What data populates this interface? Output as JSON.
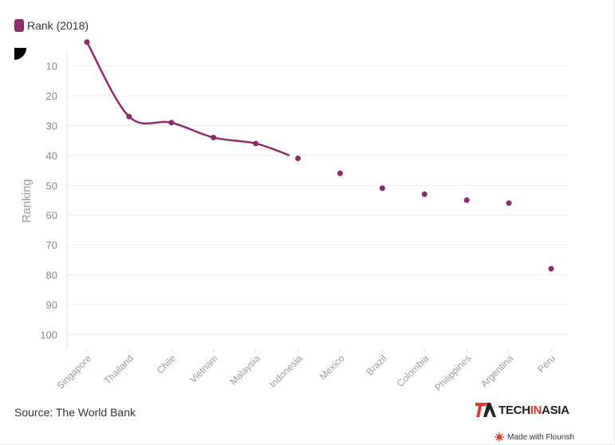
{
  "legend": {
    "label": "Rank (2018)",
    "color": "#8b2d6b"
  },
  "source": {
    "text": "Source: The World Bank"
  },
  "brand": {
    "prefix": "TECH",
    "middle": "IN",
    "suffix": "ASIA"
  },
  "flourish": {
    "label": "Made with Flourish"
  },
  "chart_data": {
    "type": "line",
    "title": "",
    "xlabel": "",
    "ylabel": "Ranking",
    "categories": [
      "Singapore",
      "Thailand",
      "Chile",
      "Vietnam",
      "Malaysia",
      "Indonesia",
      "Mexico",
      "Brazil",
      "Colombia",
      "Philippines",
      "Argentina",
      "Peru"
    ],
    "series": [
      {
        "name": "Rank (2018)",
        "values": [
          2,
          27,
          29,
          34,
          36,
          41,
          46,
          51,
          53,
          55,
          56,
          78
        ],
        "color": "#8b2d6b"
      }
    ],
    "ylim": [
      5,
      105
    ],
    "y_inverted": true,
    "yticks": [
      10,
      20,
      30,
      40,
      50,
      60,
      70,
      80,
      90,
      100
    ],
    "line_connected_through": "Malaysia",
    "grid": true
  }
}
